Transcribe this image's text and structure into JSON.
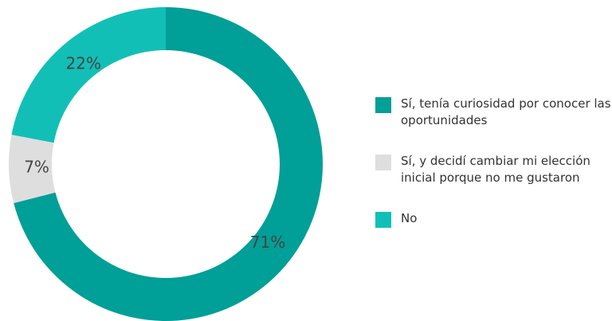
{
  "chart_data": {
    "type": "donut",
    "categories": [
      "Sí, tenía curiosidad por conocer las oportunidades",
      "Sí, y decidí cambiar mi elección inicial porque no me gustaron",
      "No"
    ],
    "values": [
      71,
      7,
      22
    ],
    "value_labels": [
      "71%",
      "7%",
      "22%"
    ],
    "colors": [
      "#009f97",
      "#dedede",
      "#12bfb6"
    ],
    "legend": "right"
  }
}
